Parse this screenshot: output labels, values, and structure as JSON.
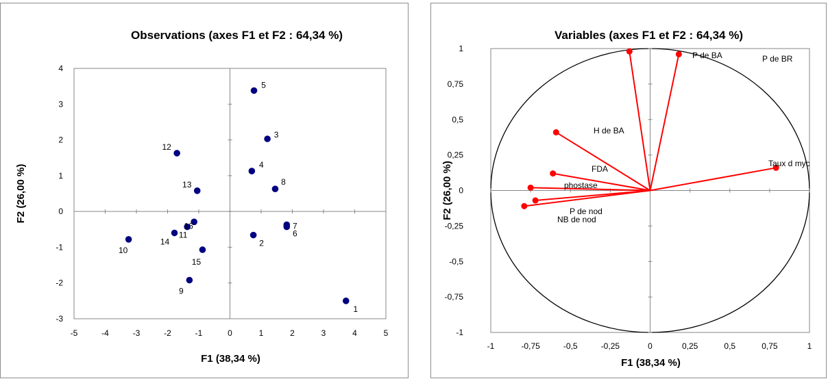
{
  "chart_data": [
    {
      "type": "scatter",
      "title": "Observations (axes F1 et F2 : 64,34 %)",
      "xlabel": "F1 (38,34 %)",
      "ylabel": "F2 (26,00 %)",
      "xlim": [
        -5,
        5
      ],
      "ylim": [
        -3,
        4
      ],
      "xticks": [
        "-5",
        "-4",
        "-3",
        "-2",
        "-1",
        "0",
        "1",
        "2",
        "3",
        "4",
        "5"
      ],
      "yticks": [
        "-3",
        "-2",
        "-1",
        "0",
        "1",
        "2",
        "3",
        "4"
      ],
      "grid": false,
      "point_color": "#000080",
      "points": [
        {
          "label": "1",
          "x": 3.72,
          "y": -2.5
        },
        {
          "label": "2",
          "x": 0.75,
          "y": -0.66
        },
        {
          "label": "3",
          "x": 1.2,
          "y": 2.03
        },
        {
          "label": "4",
          "x": 0.7,
          "y": 1.13
        },
        {
          "label": "5",
          "x": 0.77,
          "y": 3.38
        },
        {
          "label": "6",
          "x": 1.82,
          "y": -0.43
        },
        {
          "label": "7",
          "x": 1.82,
          "y": -0.37
        },
        {
          "label": "8",
          "x": 1.45,
          "y": 0.63
        },
        {
          "label": "9",
          "x": -1.3,
          "y": -1.92
        },
        {
          "label": "10",
          "x": -3.25,
          "y": -0.78
        },
        {
          "label": "11",
          "x": -1.37,
          "y": -0.43
        },
        {
          "label": "12",
          "x": -1.7,
          "y": 1.63
        },
        {
          "label": "13",
          "x": -1.05,
          "y": 0.58
        },
        {
          "label": "14",
          "x": -1.78,
          "y": -0.6
        },
        {
          "label": "15",
          "x": -0.88,
          "y": -1.07
        },
        {
          "label": "16",
          "x": -1.15,
          "y": -0.29
        }
      ]
    },
    {
      "type": "scatter",
      "title": "Variables (axes F1 et F2 : 64,34 %)",
      "xlabel": "F1 (38,34 %)",
      "ylabel": "F2 (26,00 %)",
      "xlim": [
        -1,
        1
      ],
      "ylim": [
        -1,
        1
      ],
      "xticks": [
        "-1",
        "-0,75",
        "-0,5",
        "-0,25",
        "0",
        "0,25",
        "0,5",
        "0,75",
        "1"
      ],
      "yticks": [
        "-1",
        "-0,75",
        "-0,5",
        "-0,25",
        "0",
        "0,25",
        "0,5",
        "0,75",
        "1"
      ],
      "grid": false,
      "unit_circle": true,
      "vector_color": "#ff0000",
      "variables": [
        {
          "label": "",
          "x": -0.13,
          "y": 0.98
        },
        {
          "label": "P de BA",
          "x": 0.18,
          "y": 0.96
        },
        {
          "label": "P de BR",
          "x": null,
          "y": null
        },
        {
          "label": "H de BA",
          "x": -0.59,
          "y": 0.41
        },
        {
          "label": "Taux d myc",
          "x": 0.79,
          "y": 0.16
        },
        {
          "label": "FDA",
          "x": -0.61,
          "y": 0.12
        },
        {
          "label": "phostase",
          "x": -0.75,
          "y": 0.02
        },
        {
          "label": "P de nod",
          "x": -0.72,
          "y": -0.07
        },
        {
          "label": "NB de nod",
          "x": -0.79,
          "y": -0.11
        }
      ]
    }
  ]
}
